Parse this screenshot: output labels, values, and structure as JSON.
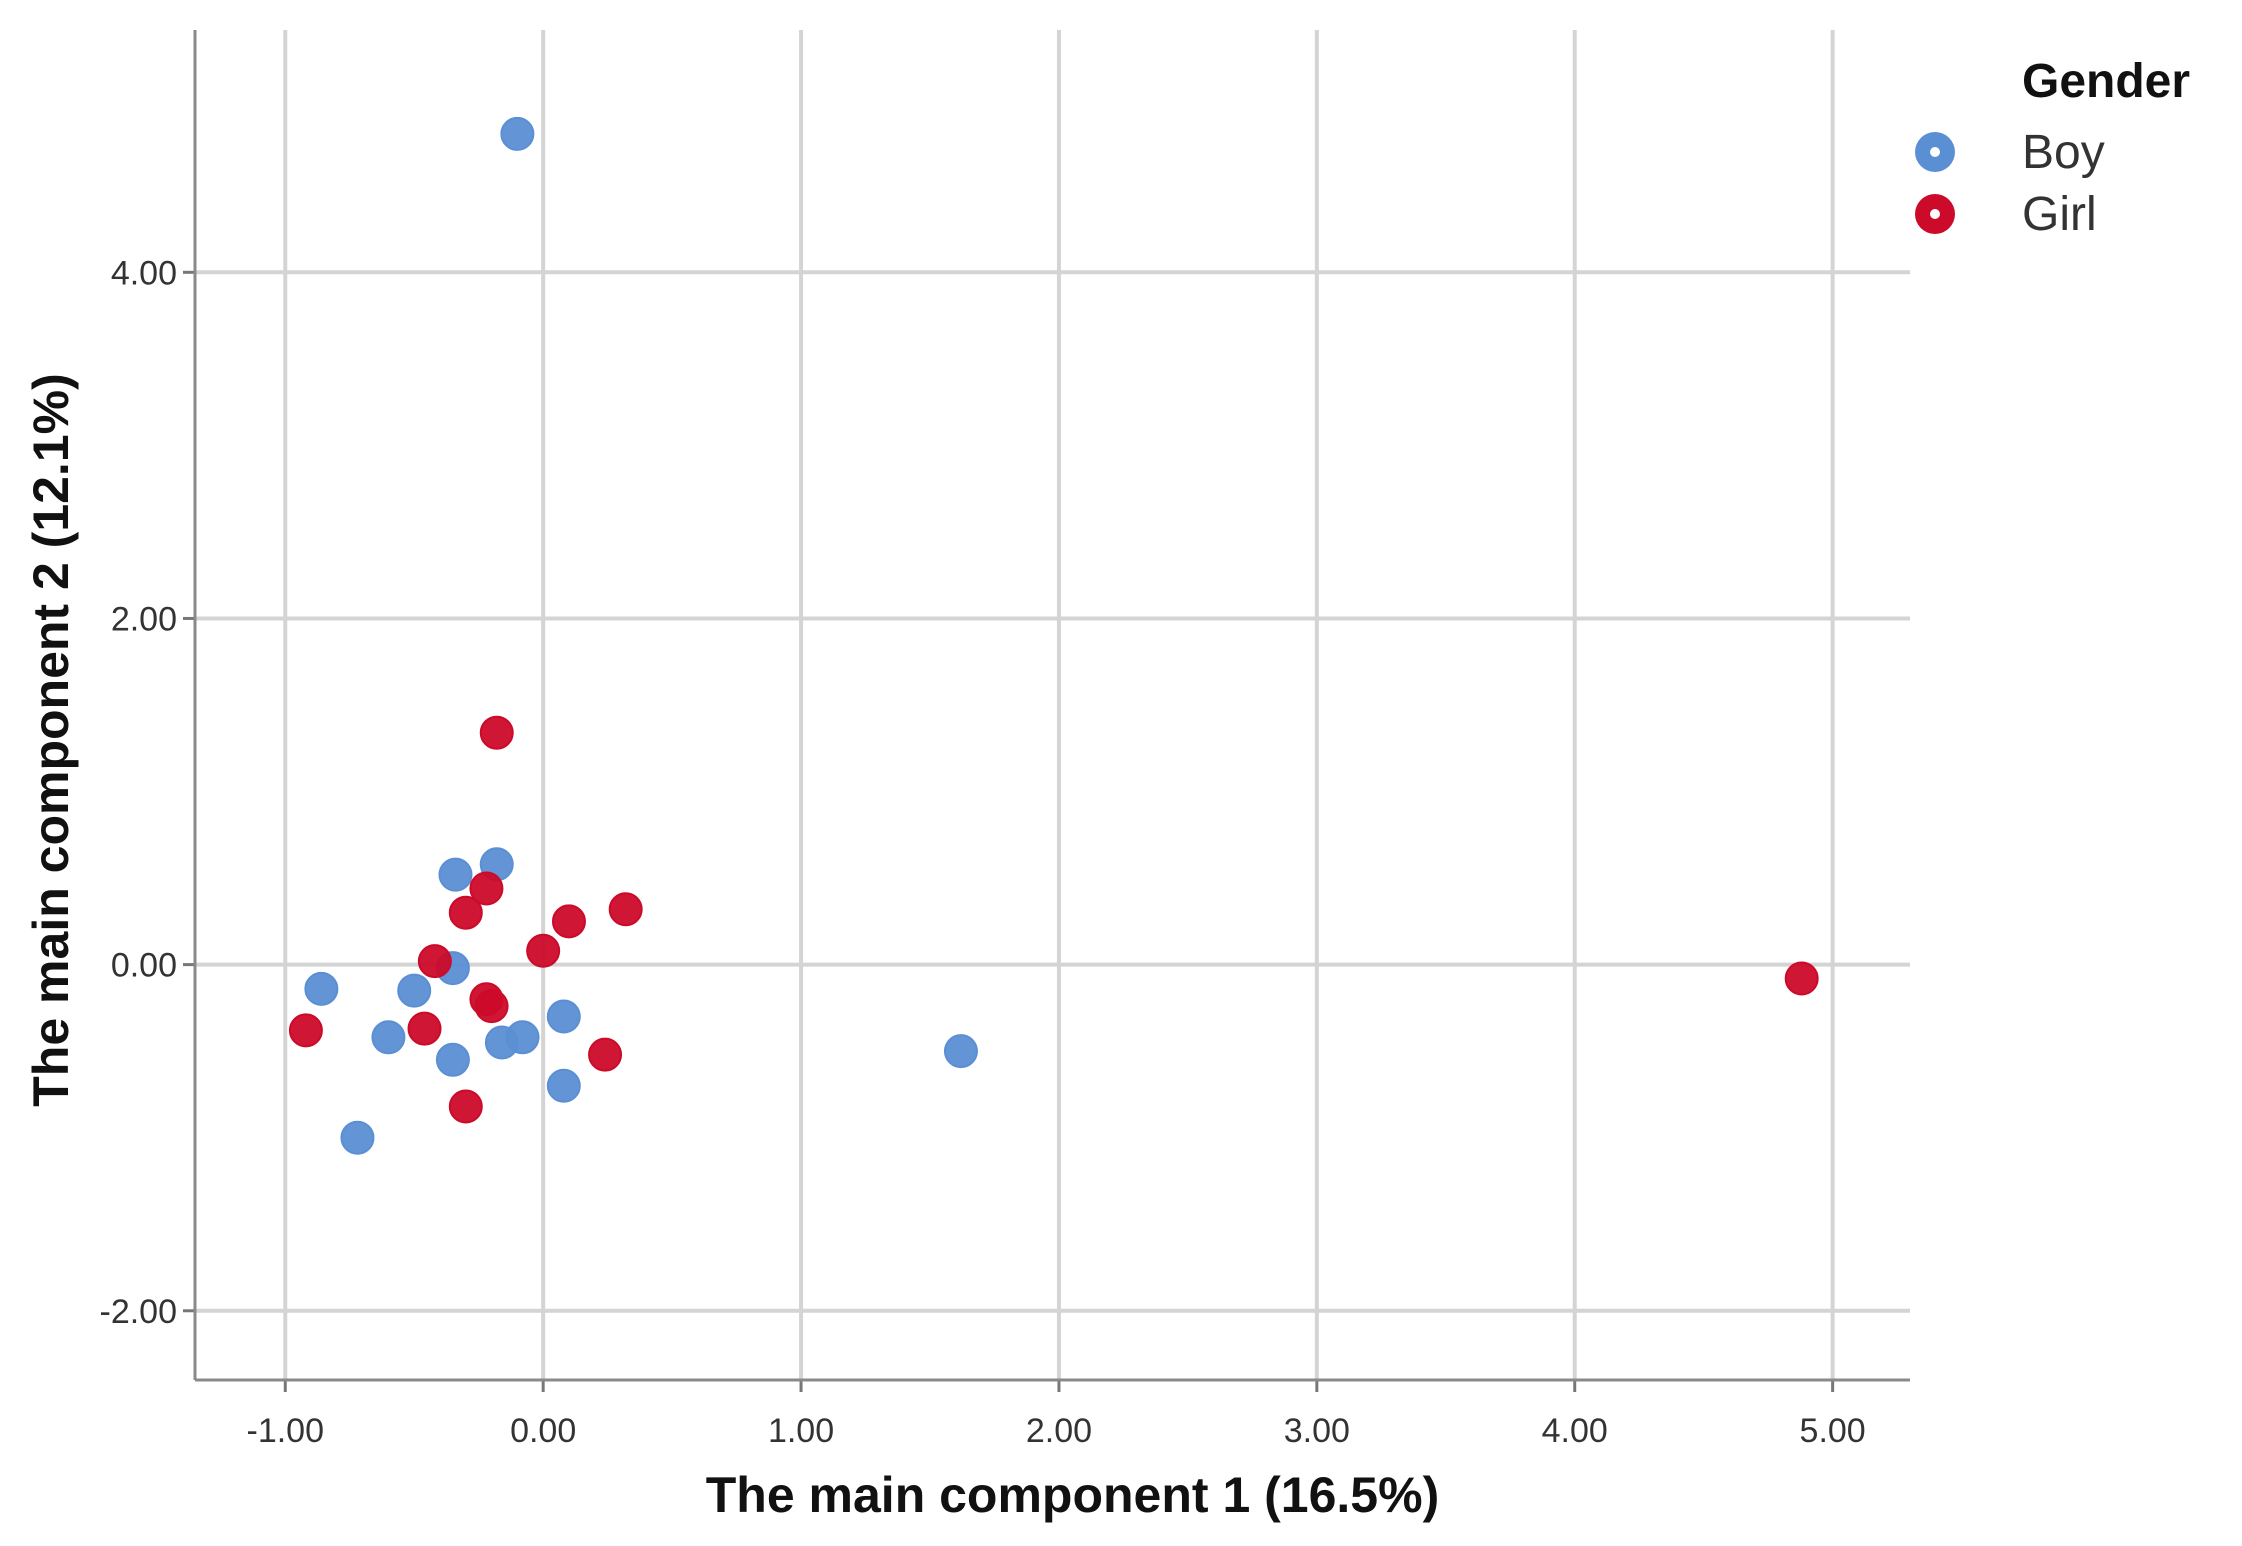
{
  "chart_data": {
    "type": "scatter",
    "xlabel": "The main  component  1 (16.5%)",
    "ylabel": "The main component  2 (12.1%)",
    "xlim": [
      -1.35,
      5.3
    ],
    "ylim": [
      -2.4,
      5.4
    ],
    "xticks": [
      -1.0,
      0.0,
      1.0,
      2.0,
      3.0,
      4.0,
      5.0
    ],
    "xtick_labels": [
      "-1.00",
      "0.00",
      "1.00",
      "2.00",
      "3.00",
      "4.00",
      "5.00"
    ],
    "yticks": [
      -2.0,
      0.0,
      2.0,
      4.0
    ],
    "ytick_labels": [
      "-2.00",
      "0.00",
      "2.00",
      "4.00"
    ],
    "grid": true,
    "legend": {
      "title": "Gender",
      "position": "top-right"
    },
    "series": [
      {
        "name": "Boy",
        "color": "#5b8fd4",
        "points": [
          {
            "x": -0.1,
            "y": 4.8
          },
          {
            "x": -0.86,
            "y": -0.14
          },
          {
            "x": -0.6,
            "y": -0.42
          },
          {
            "x": -0.72,
            "y": -1.0
          },
          {
            "x": -0.5,
            "y": -0.15
          },
          {
            "x": -0.35,
            "y": -0.02
          },
          {
            "x": -0.35,
            "y": -0.55
          },
          {
            "x": -0.34,
            "y": 0.52
          },
          {
            "x": -0.18,
            "y": 0.58
          },
          {
            "x": -0.16,
            "y": -0.45
          },
          {
            "x": -0.08,
            "y": -0.42
          },
          {
            "x": 0.08,
            "y": -0.3
          },
          {
            "x": 0.08,
            "y": -0.7
          },
          {
            "x": 1.62,
            "y": -0.5
          }
        ]
      },
      {
        "name": "Girl",
        "color": "#cc0a2a",
        "points": [
          {
            "x": -0.18,
            "y": 1.34
          },
          {
            "x": -0.92,
            "y": -0.38
          },
          {
            "x": -0.46,
            "y": -0.37
          },
          {
            "x": -0.42,
            "y": 0.02
          },
          {
            "x": -0.3,
            "y": 0.3
          },
          {
            "x": -0.22,
            "y": 0.44
          },
          {
            "x": -0.22,
            "y": -0.2
          },
          {
            "x": -0.2,
            "y": -0.24
          },
          {
            "x": -0.3,
            "y": -0.82
          },
          {
            "x": 0.0,
            "y": 0.08
          },
          {
            "x": 0.1,
            "y": 0.25
          },
          {
            "x": 0.32,
            "y": 0.32
          },
          {
            "x": 0.24,
            "y": -0.52
          },
          {
            "x": 4.88,
            "y": -0.08
          }
        ]
      }
    ]
  }
}
